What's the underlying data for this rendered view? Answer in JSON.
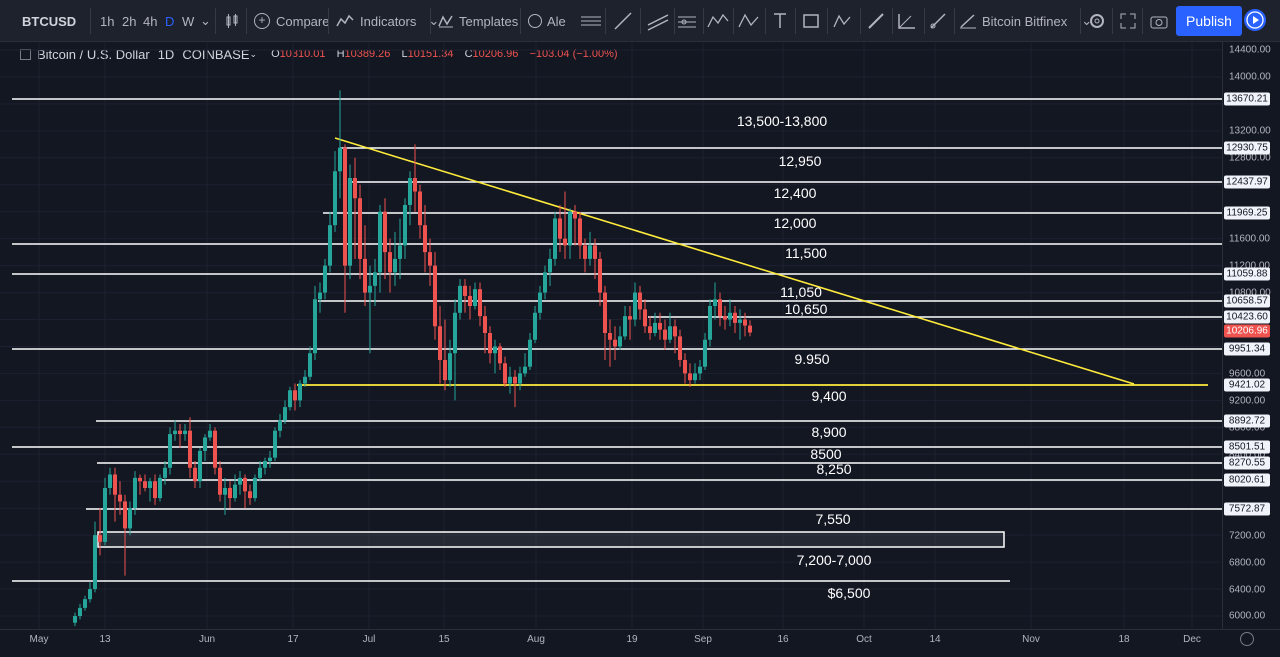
{
  "toolbar": {
    "symbol": "BTCUSD",
    "intervals": [
      "1h",
      "2h",
      "4h",
      "D",
      "W"
    ],
    "compare_label": "Compare",
    "indicators_label": "Indicators",
    "templates_label": "Templates",
    "alert_label": "Ale",
    "layout_name": "Bitcoin Bitfinex",
    "publish_label": "Publish",
    "accent_color": "#2962ff"
  },
  "legend": {
    "title": "Bitcoin / U.S. Dollar",
    "interval": "1D",
    "exchange": "COINBASE",
    "open_key": "O",
    "open": "10310.01",
    "high_key": "H",
    "high": "10389.26",
    "low_key": "L",
    "low": "10151.34",
    "close_key": "C",
    "close": "10206.96",
    "change": "−103.04 (−1.00%)"
  },
  "price_axis": {
    "ticks": [
      "14400.00",
      "14000.00",
      "13200.00",
      "12800.00",
      "11600.00",
      "11200.00",
      "10800.00",
      "9600.00",
      "9200.00",
      "8800.00",
      "8400.00",
      "8000.00",
      "7200.00",
      "6800.00",
      "6400.00",
      "6000.00"
    ],
    "labels": [
      "13670.21",
      "12930.75",
      "12437.97",
      "11969.25",
      "11059.88",
      "10658.57",
      "10423.60",
      "9951.34",
      "9421.02",
      "8892.72",
      "8501.51",
      "8270.55",
      "8020.61",
      "7572.87"
    ],
    "current": "10206.96"
  },
  "time_axis": {
    "labels": [
      "May",
      "13",
      "Jun",
      "17",
      "Jul",
      "15",
      "Aug",
      "19",
      "Sep",
      "16",
      "Oct",
      "14",
      "Nov",
      "18",
      "Dec"
    ]
  },
  "annotations": {
    "a1": "13,500-13,800",
    "a2": "12,950",
    "a3": "12,400",
    "a4": "12,000",
    "a5": "11,500",
    "a6": "11,050",
    "a7": "10,650",
    "a8": "9.950",
    "a9": "9,400",
    "a10": "8,900",
    "a11": "8500",
    "a12": "8,250",
    "a13": "7,550",
    "a14": "7,200-7,000",
    "a15": "$6,500"
  },
  "chart_data": {
    "type": "candlestick",
    "up_color": "#26a69a",
    "down_color": "#ef5350",
    "support_resistance_levels": [
      13670.21,
      12930.75,
      12437.97,
      11969.25,
      11500,
      11059.88,
      10658.57,
      10423.6,
      9951.34,
      9421.02,
      8892.72,
      8501.51,
      8270.55,
      8020.61,
      7572.87,
      6500
    ],
    "zone_7200_7000": [
      7000,
      7200
    ],
    "trendline_color": "#ffeb3b",
    "current_price": 10206.96
  }
}
